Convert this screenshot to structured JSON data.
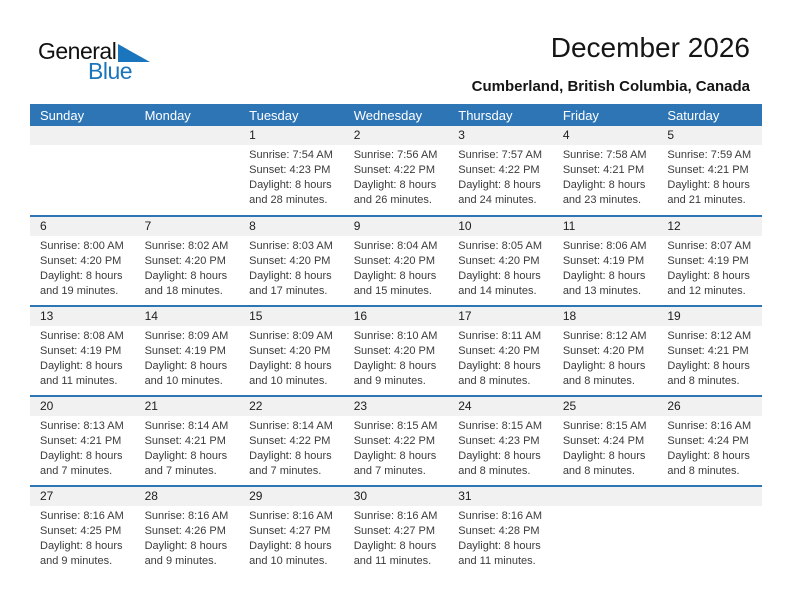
{
  "logo": {
    "word_general": "General",
    "word_blue": "Blue"
  },
  "header": {
    "title": "December 2026",
    "subtitle": "Cumberland, British Columbia, Canada"
  },
  "labels": {
    "sunrise": "Sunrise:",
    "sunset": "Sunset:",
    "daylight": "Daylight:"
  },
  "weekdays": [
    "Sunday",
    "Monday",
    "Tuesday",
    "Wednesday",
    "Thursday",
    "Friday",
    "Saturday"
  ],
  "colors": {
    "header_bg": "#2E75B6",
    "week_border": "#2E75B6",
    "number_strip": "#F1F1F1",
    "logo_blue": "#1B75BC"
  },
  "weeks": [
    [
      null,
      null,
      {
        "day": "1",
        "sunrise": "7:54 AM",
        "sunset": "4:23 PM",
        "daylight": "8 hours and 28 minutes."
      },
      {
        "day": "2",
        "sunrise": "7:56 AM",
        "sunset": "4:22 PM",
        "daylight": "8 hours and 26 minutes."
      },
      {
        "day": "3",
        "sunrise": "7:57 AM",
        "sunset": "4:22 PM",
        "daylight": "8 hours and 24 minutes."
      },
      {
        "day": "4",
        "sunrise": "7:58 AM",
        "sunset": "4:21 PM",
        "daylight": "8 hours and 23 minutes."
      },
      {
        "day": "5",
        "sunrise": "7:59 AM",
        "sunset": "4:21 PM",
        "daylight": "8 hours and 21 minutes."
      }
    ],
    [
      {
        "day": "6",
        "sunrise": "8:00 AM",
        "sunset": "4:20 PM",
        "daylight": "8 hours and 19 minutes."
      },
      {
        "day": "7",
        "sunrise": "8:02 AM",
        "sunset": "4:20 PM",
        "daylight": "8 hours and 18 minutes."
      },
      {
        "day": "8",
        "sunrise": "8:03 AM",
        "sunset": "4:20 PM",
        "daylight": "8 hours and 17 minutes."
      },
      {
        "day": "9",
        "sunrise": "8:04 AM",
        "sunset": "4:20 PM",
        "daylight": "8 hours and 15 minutes."
      },
      {
        "day": "10",
        "sunrise": "8:05 AM",
        "sunset": "4:20 PM",
        "daylight": "8 hours and 14 minutes."
      },
      {
        "day": "11",
        "sunrise": "8:06 AM",
        "sunset": "4:19 PM",
        "daylight": "8 hours and 13 minutes."
      },
      {
        "day": "12",
        "sunrise": "8:07 AM",
        "sunset": "4:19 PM",
        "daylight": "8 hours and 12 minutes."
      }
    ],
    [
      {
        "day": "13",
        "sunrise": "8:08 AM",
        "sunset": "4:19 PM",
        "daylight": "8 hours and 11 minutes."
      },
      {
        "day": "14",
        "sunrise": "8:09 AM",
        "sunset": "4:19 PM",
        "daylight": "8 hours and 10 minutes."
      },
      {
        "day": "15",
        "sunrise": "8:09 AM",
        "sunset": "4:20 PM",
        "daylight": "8 hours and 10 minutes."
      },
      {
        "day": "16",
        "sunrise": "8:10 AM",
        "sunset": "4:20 PM",
        "daylight": "8 hours and 9 minutes."
      },
      {
        "day": "17",
        "sunrise": "8:11 AM",
        "sunset": "4:20 PM",
        "daylight": "8 hours and 8 minutes."
      },
      {
        "day": "18",
        "sunrise": "8:12 AM",
        "sunset": "4:20 PM",
        "daylight": "8 hours and 8 minutes."
      },
      {
        "day": "19",
        "sunrise": "8:12 AM",
        "sunset": "4:21 PM",
        "daylight": "8 hours and 8 minutes."
      }
    ],
    [
      {
        "day": "20",
        "sunrise": "8:13 AM",
        "sunset": "4:21 PM",
        "daylight": "8 hours and 7 minutes."
      },
      {
        "day": "21",
        "sunrise": "8:14 AM",
        "sunset": "4:21 PM",
        "daylight": "8 hours and 7 minutes."
      },
      {
        "day": "22",
        "sunrise": "8:14 AM",
        "sunset": "4:22 PM",
        "daylight": "8 hours and 7 minutes."
      },
      {
        "day": "23",
        "sunrise": "8:15 AM",
        "sunset": "4:22 PM",
        "daylight": "8 hours and 7 minutes."
      },
      {
        "day": "24",
        "sunrise": "8:15 AM",
        "sunset": "4:23 PM",
        "daylight": "8 hours and 8 minutes."
      },
      {
        "day": "25",
        "sunrise": "8:15 AM",
        "sunset": "4:24 PM",
        "daylight": "8 hours and 8 minutes."
      },
      {
        "day": "26",
        "sunrise": "8:16 AM",
        "sunset": "4:24 PM",
        "daylight": "8 hours and 8 minutes."
      }
    ],
    [
      {
        "day": "27",
        "sunrise": "8:16 AM",
        "sunset": "4:25 PM",
        "daylight": "8 hours and 9 minutes."
      },
      {
        "day": "28",
        "sunrise": "8:16 AM",
        "sunset": "4:26 PM",
        "daylight": "8 hours and 9 minutes."
      },
      {
        "day": "29",
        "sunrise": "8:16 AM",
        "sunset": "4:27 PM",
        "daylight": "8 hours and 10 minutes."
      },
      {
        "day": "30",
        "sunrise": "8:16 AM",
        "sunset": "4:27 PM",
        "daylight": "8 hours and 11 minutes."
      },
      {
        "day": "31",
        "sunrise": "8:16 AM",
        "sunset": "4:28 PM",
        "daylight": "8 hours and 11 minutes."
      },
      null,
      null
    ]
  ]
}
